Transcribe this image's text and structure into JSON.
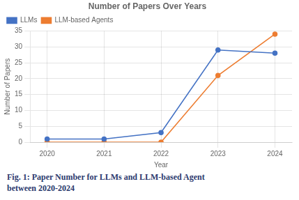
{
  "chart_data": {
    "type": "line",
    "title": "Number of Papers Over Years",
    "x_label": "Year",
    "y_label": "Number of Papers",
    "x": [
      2020,
      2021,
      2022,
      2023,
      2024
    ],
    "series": [
      {
        "name": "LLMs",
        "color": "#4472C4",
        "marker": "circle",
        "values": [
          1,
          1,
          3,
          29,
          28
        ]
      },
      {
        "name": "LLM-based Agents",
        "color": "#ED7D31",
        "marker": "circle",
        "values": [
          0,
          0,
          0,
          21,
          34
        ]
      }
    ],
    "xlim": [
      2019.7,
      2024.3
    ],
    "xticks": [
      2020,
      2021,
      2022,
      2023,
      2024
    ],
    "ylim": [
      0,
      35
    ],
    "yticks": [
      0,
      5,
      10,
      15,
      20,
      25,
      30,
      35
    ],
    "grid": true,
    "legend": "upper left",
    "annotations": [
      "Fig. 1: Paper Number for LLMs and LLM-based Agent",
      "between 2020-2024"
    ]
  }
}
